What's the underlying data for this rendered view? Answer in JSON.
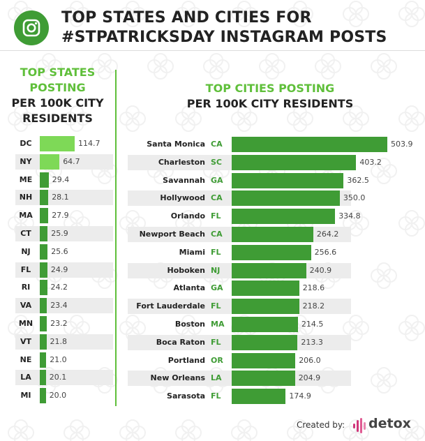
{
  "header": {
    "title_line1": "TOP STATES AND CITIES FOR",
    "title_line2": "#STPATRICKSDAY INSTAGRAM POSTS",
    "icon": "instagram-icon"
  },
  "colors": {
    "green": "#3f9c35",
    "light_green": "#7ed957",
    "accent": "#5fbf3a"
  },
  "chart_data": [
    {
      "type": "bar",
      "title": [
        "TOP STATES",
        "POSTING",
        "PER 100K CITY",
        "RESIDENTS"
      ],
      "categories": [
        "DC",
        "NY",
        "ME",
        "NH",
        "MA",
        "CT",
        "NJ",
        "FL",
        "RI",
        "VA",
        "MN",
        "VT",
        "NE",
        "LA",
        "MI"
      ],
      "values": [
        114.7,
        64.7,
        29.4,
        28.1,
        27.9,
        25.9,
        25.6,
        24.9,
        24.2,
        23.4,
        23.2,
        21.8,
        21.0,
        20.1,
        20.0
      ],
      "value_labels": [
        "114.7",
        "64.7",
        "29.4",
        "28.1",
        "27.9",
        "25.9",
        "25.6",
        "24.9",
        "24.2",
        "23.4",
        "23.2",
        "21.8",
        "21.0",
        "20.1",
        "20.0"
      ],
      "highlight_colors": [
        "#7ed957",
        "#7ed957"
      ]
    },
    {
      "type": "bar",
      "title": [
        "TOP CITIES POSTING",
        "PER 100K CITY RESIDENTS"
      ],
      "categories": [
        "Santa Monica",
        "Charleston",
        "Savannah",
        "Hollywood",
        "Orlando",
        "Newport Beach",
        "Miami",
        "Hoboken",
        "Atlanta",
        "Fort Lauderdale",
        "Boston",
        "Boca Raton",
        "Portland",
        "New Orleans",
        "Sarasota"
      ],
      "states": [
        "CA",
        "SC",
        "GA",
        "CA",
        "FL",
        "CA",
        "FL",
        "NJ",
        "GA",
        "FL",
        "MA",
        "FL",
        "OR",
        "LA",
        "FL"
      ],
      "values": [
        503.9,
        403.2,
        362.5,
        350.0,
        334.8,
        264.2,
        256.6,
        240.9,
        218.6,
        218.2,
        214.5,
        213.3,
        206.0,
        204.9,
        174.9
      ],
      "value_labels": [
        "503.9",
        "403.2",
        "362.5",
        "350.0",
        "334.8",
        "264.2",
        "256.6",
        "240.9",
        "218.6",
        "218.2",
        "214.5",
        "213.3",
        "206.0",
        "204.9",
        "174.9"
      ]
    }
  ],
  "footer": {
    "created_by": "Created by:",
    "brand": "detox"
  }
}
